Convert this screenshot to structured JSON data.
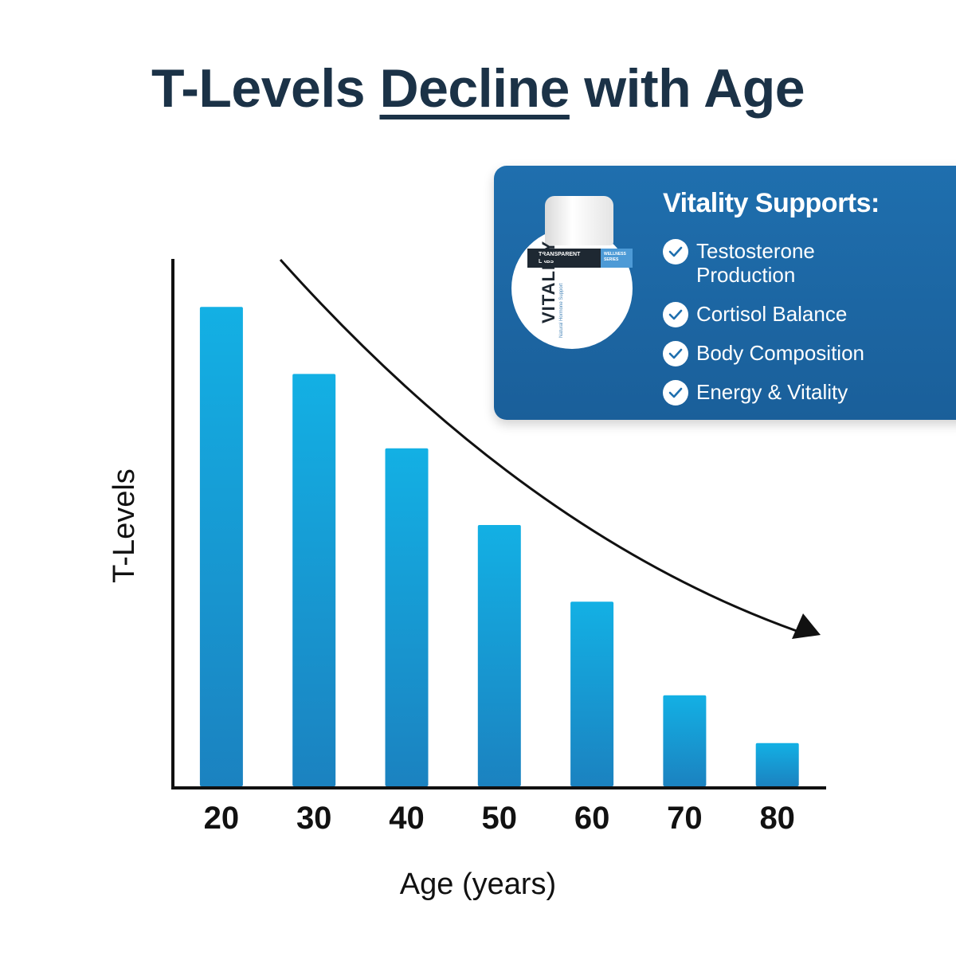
{
  "title": {
    "before": "T-Levels ",
    "highlight": "Decline",
    "after": " with Age"
  },
  "promo": {
    "heading": "Vitality Supports:",
    "items": [
      "Testosterone Production",
      "Cortisol Balance",
      "Body Composition",
      "Energy & Vitality"
    ],
    "product": {
      "brand_line1": "TRANSPARENT",
      "brand_line2": "LABS",
      "series_line1": "WELLNESS",
      "series_line2": "SERIES",
      "name": "VITALITY",
      "subtitle": "Natural Hormone Support"
    }
  },
  "chart_data": {
    "type": "bar",
    "categories": [
      "20",
      "30",
      "40",
      "50",
      "60",
      "70",
      "80"
    ],
    "values": [
      100,
      86,
      70.5,
      54.5,
      38.5,
      19,
      9
    ],
    "ylim": [
      0,
      110
    ],
    "xlabel": "Age (years)",
    "ylabel": "T-Levels",
    "grid": false,
    "legend": "none",
    "trend": "downward arrow",
    "colors": {
      "bar_top": "#13b0e4",
      "bar_bottom": "#1b82c0",
      "axis": "#111111",
      "title": "#1b3247",
      "promo_bg": "#1f6fae"
    }
  }
}
